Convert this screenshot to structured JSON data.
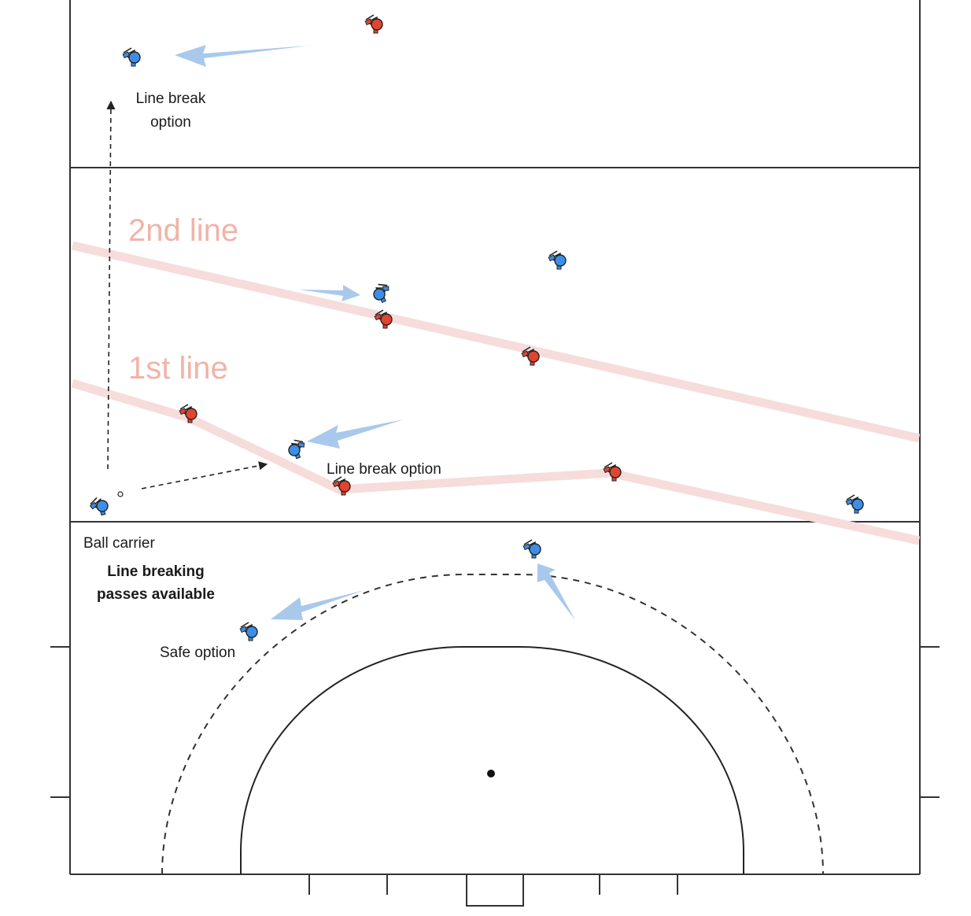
{
  "colors": {
    "blue_team": "#3d8ee8",
    "red_team": "#e2452f",
    "pass_arrow": "#a9c9ec",
    "defensive_line": "#f7dcdc",
    "line_label": "#f0b4a8",
    "pitch_line": "#333333"
  },
  "labels": {
    "second_line": "2nd line",
    "first_line": "1st line",
    "line_break_top_1": "Line break",
    "line_break_top_2": "option",
    "line_break_mid": "Line break option",
    "ball_carrier": "Ball carrier",
    "headline_1": "Line breaking",
    "headline_2": "passes available",
    "safe_option": "Safe option"
  }
}
